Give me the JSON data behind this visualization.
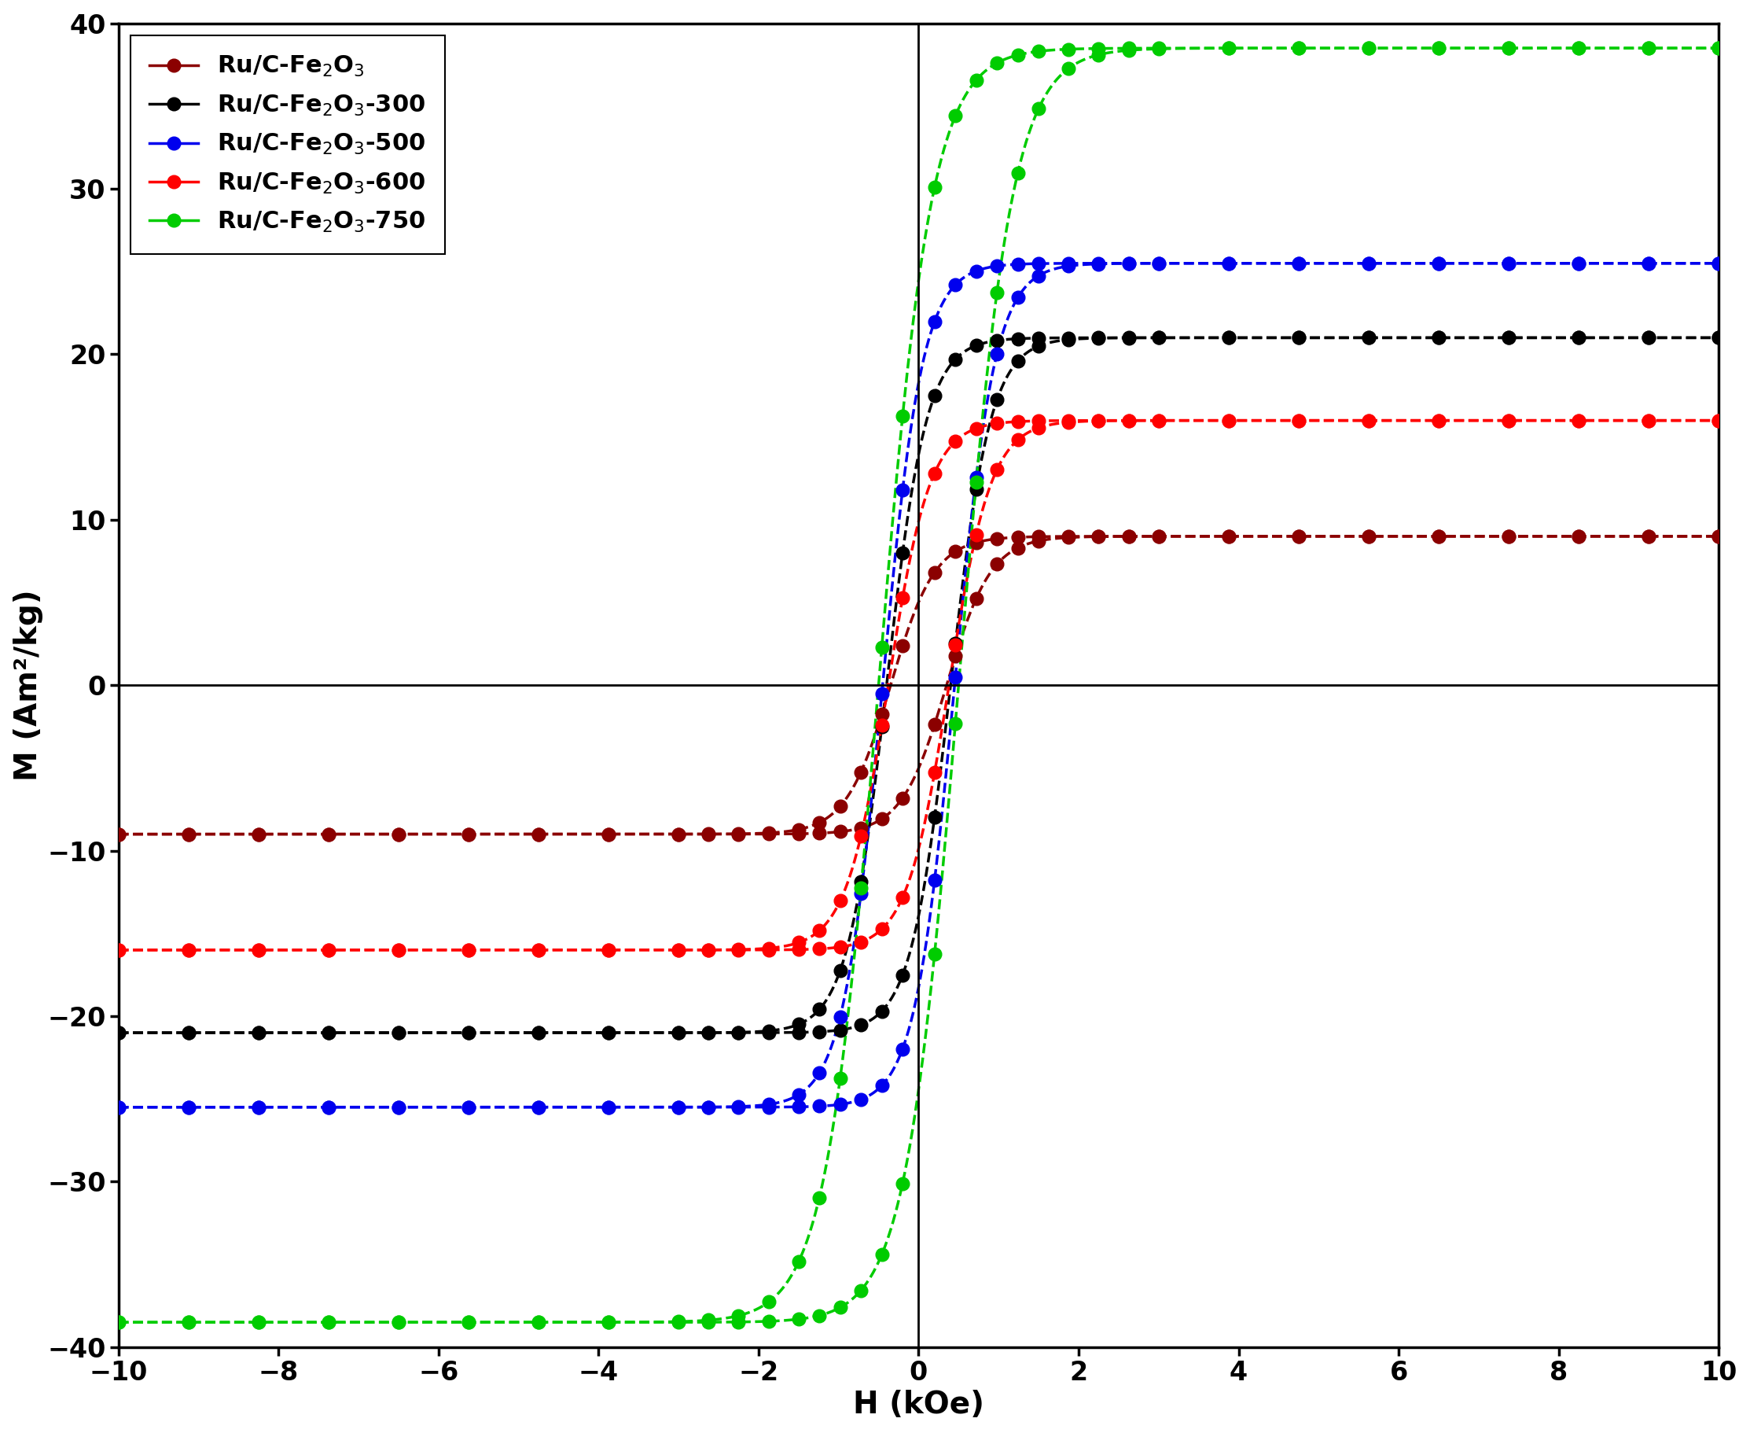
{
  "title": "",
  "xlabel": "H (kOe)",
  "ylabel": "M (Am²/kg)",
  "xlim": [
    -10,
    10
  ],
  "ylim": [
    -40,
    40
  ],
  "xticks": [
    -10,
    -8,
    -6,
    -4,
    -2,
    0,
    2,
    4,
    6,
    8,
    10
  ],
  "yticks": [
    -40,
    -30,
    -20,
    -10,
    0,
    10,
    20,
    30,
    40
  ],
  "series": [
    {
      "label": "Ru/C-Fe$_2$O$_3$",
      "color": "#8B0000",
      "Ms": 9.0,
      "Hc": 0.35,
      "steepness": 1.8
    },
    {
      "label": "Ru/C-Fe$_2$O$_3$-300",
      "color": "#000000",
      "Ms": 21.0,
      "Hc": 0.4,
      "steepness": 2.0
    },
    {
      "label": "Ru/C-Fe$_2$O$_3$-500",
      "color": "#0000EE",
      "Ms": 25.5,
      "Hc": 0.45,
      "steepness": 2.0
    },
    {
      "label": "Ru/C-Fe$_2$O$_3$-600",
      "color": "#FF0000",
      "Ms": 16.0,
      "Hc": 0.38,
      "steepness": 1.9
    },
    {
      "label": "Ru/C-Fe$_2$O$_3$-750",
      "color": "#00CC00",
      "Ms": 38.5,
      "Hc": 0.5,
      "steepness": 1.5
    }
  ],
  "background_color": "#ffffff",
  "legend_fontsize": 22,
  "axis_fontsize": 28,
  "tick_fontsize": 24,
  "marker_size": 12,
  "line_width": 2.5
}
